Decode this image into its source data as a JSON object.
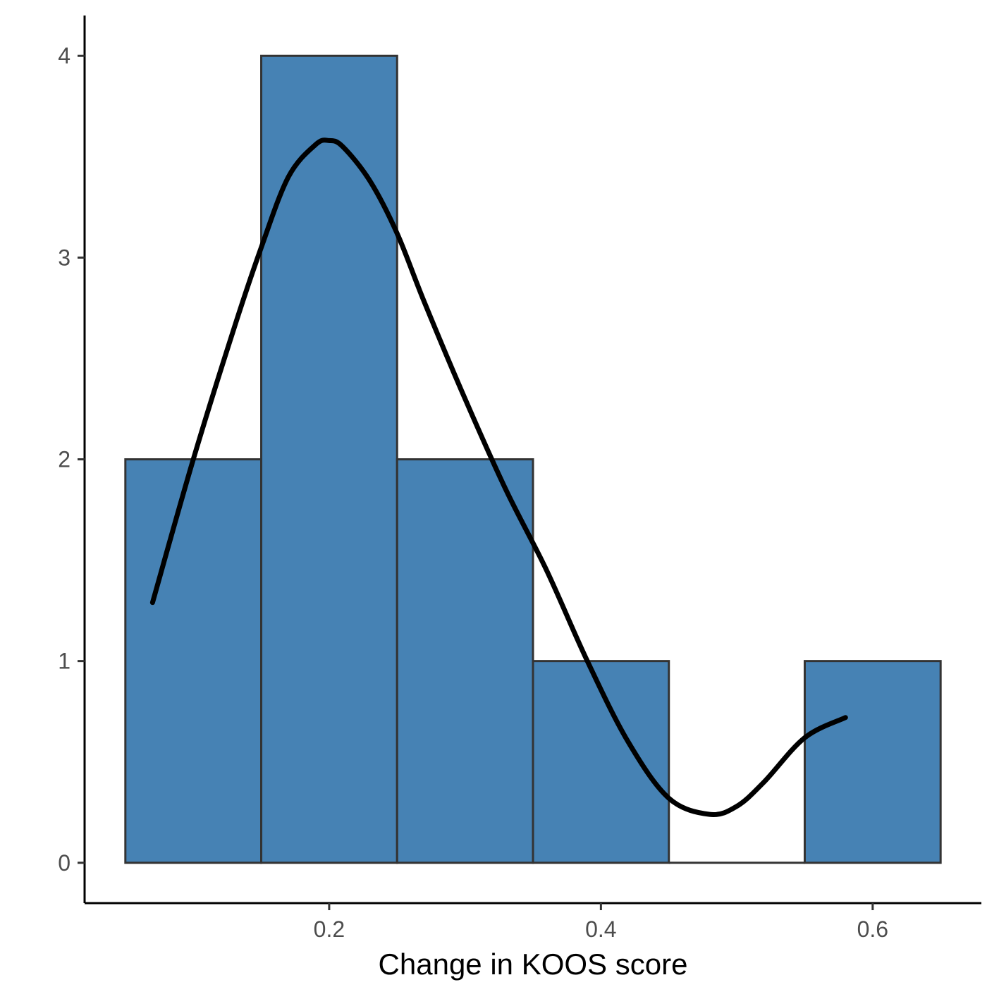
{
  "chart_data": {
    "type": "bar",
    "subtype": "histogram-with-density",
    "title": "",
    "xlabel": "Change in KOOS score",
    "ylabel": "",
    "xlim": [
      0.02,
      0.68
    ],
    "ylim": [
      -0.2,
      4.2
    ],
    "x_ticks": [
      0.2,
      0.4,
      0.6
    ],
    "x_tick_labels": [
      "0.2",
      "0.4",
      "0.6"
    ],
    "y_ticks": [
      0,
      1,
      2,
      3,
      4
    ],
    "y_tick_labels": [
      "0",
      "1",
      "2",
      "3",
      "4"
    ],
    "bins": [
      {
        "x0": 0.05,
        "x1": 0.15,
        "count": 2
      },
      {
        "x0": 0.15,
        "x1": 0.25,
        "count": 4
      },
      {
        "x0": 0.25,
        "x1": 0.35,
        "count": 2
      },
      {
        "x0": 0.35,
        "x1": 0.45,
        "count": 1
      },
      {
        "x0": 0.45,
        "x1": 0.55,
        "count": 0
      },
      {
        "x0": 0.55,
        "x1": 0.65,
        "count": 1
      }
    ],
    "density_curve": {
      "x": [
        0.07,
        0.1,
        0.13,
        0.15,
        0.17,
        0.19,
        0.2,
        0.21,
        0.23,
        0.25,
        0.27,
        0.3,
        0.33,
        0.36,
        0.39,
        0.42,
        0.45,
        0.48,
        0.5,
        0.52,
        0.55,
        0.58
      ],
      "y": [
        1.29,
        2.0,
        2.65,
        3.05,
        3.4,
        3.56,
        3.58,
        3.55,
        3.38,
        3.12,
        2.78,
        2.3,
        1.85,
        1.45,
        1.0,
        0.6,
        0.32,
        0.24,
        0.28,
        0.4,
        0.62,
        0.72
      ]
    },
    "grid": false,
    "legend": "none",
    "colors": {
      "bar_fill": "#4682b4",
      "bar_stroke": "#333333",
      "curve": "#000000",
      "axis": "#000000"
    }
  }
}
